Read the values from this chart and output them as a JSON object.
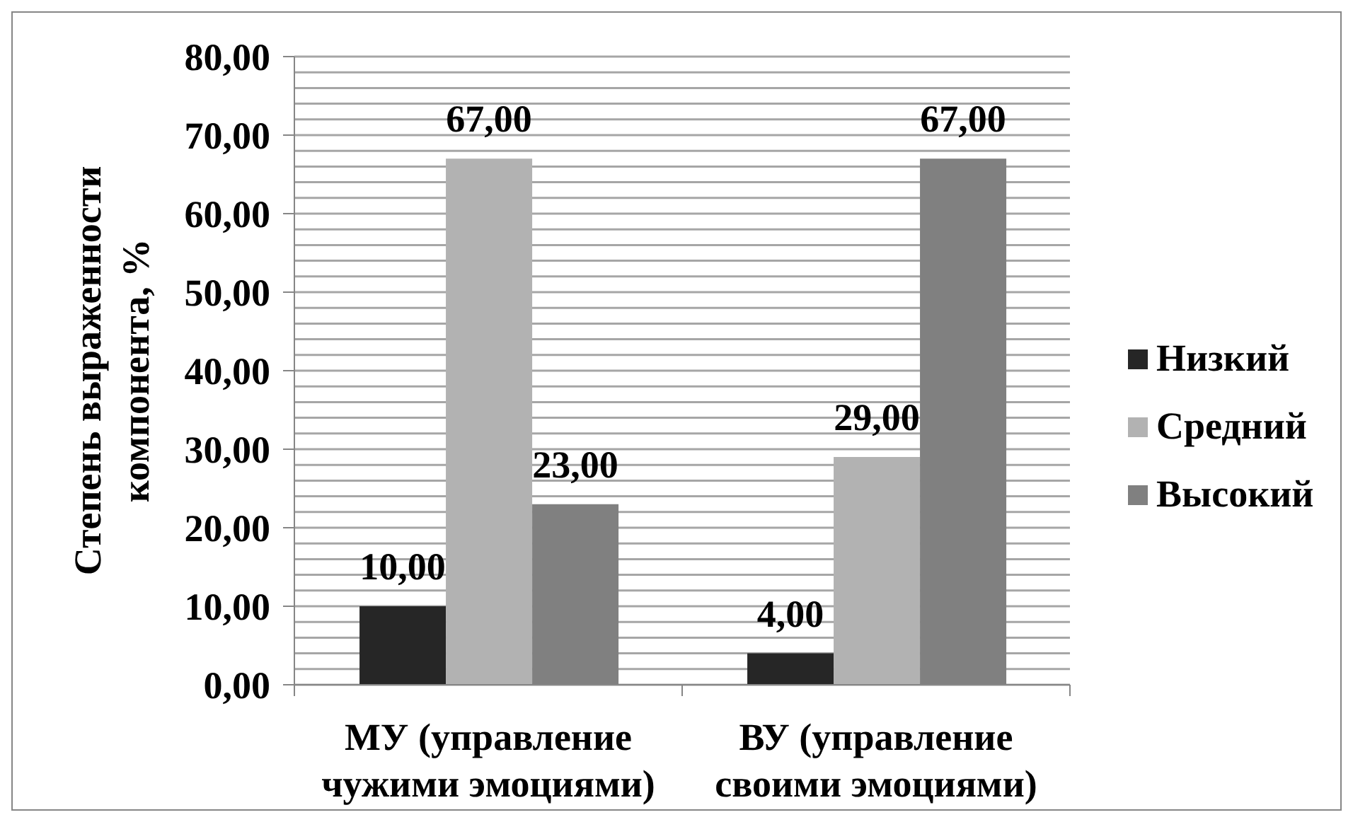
{
  "chart_data": {
    "type": "bar",
    "ylabel": "Степень выраженности компонента, %",
    "categories": [
      "МУ (управление чужими эмоциями)",
      "ВУ (управление своими эмоциями)"
    ],
    "series": [
      {
        "name": "Низкий",
        "color": "#262626",
        "values": [
          10,
          4
        ],
        "value_labels": [
          "10,00",
          "4,00"
        ]
      },
      {
        "name": "Средний",
        "color": "#b2b2b2",
        "values": [
          67,
          29
        ],
        "value_labels": [
          "67,00",
          "29,00"
        ]
      },
      {
        "name": "Высокий",
        "color": "#808080",
        "values": [
          23,
          67
        ],
        "value_labels": [
          "23,00",
          "67,00"
        ]
      }
    ],
    "ylim": [
      0,
      80
    ],
    "yticks": [
      {
        "value": 0,
        "label": "0,00"
      },
      {
        "value": 2,
        "label": null
      },
      {
        "value": 4,
        "label": null
      },
      {
        "value": 6,
        "label": null
      },
      {
        "value": 8,
        "label": null
      },
      {
        "value": 10,
        "label": "10,00"
      },
      {
        "value": 12,
        "label": null
      },
      {
        "value": 14,
        "label": null
      },
      {
        "value": 16,
        "label": null
      },
      {
        "value": 18,
        "label": null
      },
      {
        "value": 20,
        "label": "20,00"
      },
      {
        "value": 22,
        "label": null
      },
      {
        "value": 24,
        "label": null
      },
      {
        "value": 26,
        "label": null
      },
      {
        "value": 28,
        "label": null
      },
      {
        "value": 30,
        "label": "30,00"
      },
      {
        "value": 32,
        "label": null
      },
      {
        "value": 34,
        "label": null
      },
      {
        "value": 36,
        "label": null
      },
      {
        "value": 38,
        "label": null
      },
      {
        "value": 40,
        "label": "40,00"
      },
      {
        "value": 42,
        "label": null
      },
      {
        "value": 44,
        "label": null
      },
      {
        "value": 46,
        "label": null
      },
      {
        "value": 48,
        "label": null
      },
      {
        "value": 50,
        "label": "50,00"
      },
      {
        "value": 52,
        "label": null
      },
      {
        "value": 54,
        "label": null
      },
      {
        "value": 56,
        "label": null
      },
      {
        "value": 58,
        "label": null
      },
      {
        "value": 60,
        "label": "60,00"
      },
      {
        "value": 62,
        "label": null
      },
      {
        "value": 64,
        "label": null
      },
      {
        "value": 66,
        "label": null
      },
      {
        "value": 68,
        "label": null
      },
      {
        "value": 70,
        "label": "70,00"
      },
      {
        "value": 72,
        "label": null
      },
      {
        "value": 74,
        "label": null
      },
      {
        "value": 76,
        "label": null
      },
      {
        "value": 78,
        "label": null
      },
      {
        "value": 80,
        "label": "80,00"
      }
    ],
    "grid": "y",
    "legend": "right"
  }
}
